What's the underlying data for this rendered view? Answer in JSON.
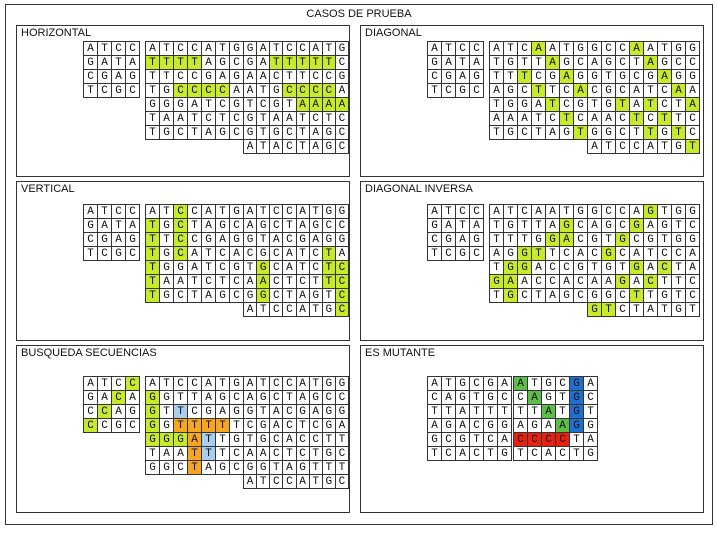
{
  "title": "CASOS DE PRUEBA",
  "panels": [
    {
      "id": "horizontal",
      "title": "HORIZONTAL",
      "grids": [
        {
          "rows": [
            "ATCC",
            "GATA",
            "CGAG",
            "TCGC"
          ],
          "hl": {}
        },
        {
          "rows": [
            "ATCCATG",
            "TTTTAGC",
            "TTCCGAG",
            "TGCCCCA",
            "GGGATCG",
            "TAATCTC",
            "TGCTAGC"
          ],
          "hl": {
            "h": [
              [
                1,
                0
              ],
              [
                1,
                1
              ],
              [
                1,
                2
              ],
              [
                1,
                3
              ],
              [
                3,
                2
              ],
              [
                3,
                3
              ],
              [
                3,
                4
              ],
              [
                3,
                5
              ]
            ]
          }
        },
        {
          "rows": [
            "GATCCATG",
            "GATTTTTC",
            "AACTTCCG",
            "ATGCCCCA",
            "TCGTAAAA",
            "GTAATCTC",
            "GTGCTAGC",
            "ATACTAGC"
          ],
          "hl": {
            "h": [
              [
                1,
                2
              ],
              [
                1,
                3
              ],
              [
                1,
                4
              ],
              [
                1,
                5
              ],
              [
                1,
                6
              ],
              [
                3,
                3
              ],
              [
                3,
                4
              ],
              [
                3,
                5
              ],
              [
                3,
                6
              ],
              [
                4,
                4
              ],
              [
                4,
                5
              ],
              [
                4,
                6
              ],
              [
                4,
                7
              ]
            ]
          }
        }
      ]
    },
    {
      "id": "diagonal",
      "title": "DIAGONAL",
      "grids": [
        {
          "rows": [
            "ATCC",
            "GATA",
            "CGAG",
            "TCGC"
          ],
          "hl": {}
        },
        {
          "rows": [
            "ATCAATG",
            "TGTTAGC",
            "TTTCGAG",
            "AGCTTCA",
            "TGGATCG",
            "AAATCTC",
            "TGCTAGT"
          ],
          "hl": {
            "h": [
              [
                0,
                3
              ],
              [
                1,
                4
              ],
              [
                2,
                2
              ],
              [
                2,
                5
              ],
              [
                3,
                3
              ],
              [
                3,
                6
              ],
              [
                4,
                4
              ],
              [
                5,
                5
              ],
              [
                6,
                6
              ]
            ]
          }
        },
        {
          "rows": [
            "GCCAATGG",
            "AGCTAGCC",
            "GTGCGAGG",
            "CGCATCAA",
            "TGTATCTA",
            "AACTCTTC",
            "GGCTTGTC",
            "ATCCATGT"
          ],
          "hl": {
            "h": [
              [
                0,
                3
              ],
              [
                1,
                4
              ],
              [
                2,
                5
              ],
              [
                3,
                6
              ],
              [
                4,
                2
              ],
              [
                4,
                4
              ],
              [
                4,
                7
              ],
              [
                5,
                3
              ],
              [
                5,
                5
              ],
              [
                6,
                4
              ],
              [
                6,
                6
              ],
              [
                7,
                7
              ]
            ]
          }
        }
      ]
    },
    {
      "id": "vertical",
      "title": "VERTICAL",
      "grids": [
        {
          "rows": [
            "ATCC",
            "GATA",
            "CGAG",
            "TCGC"
          ],
          "hl": {}
        },
        {
          "rows": [
            "ATCCATG",
            "TGCTAGC",
            "TTCCGAG",
            "TGCATCA",
            "TGGATCG",
            "TAATCTC",
            "TGCTAGC"
          ],
          "hl": {
            "h": [
              [
                0,
                2
              ],
              [
                1,
                0
              ],
              [
                1,
                2
              ],
              [
                2,
                0
              ],
              [
                2,
                2
              ],
              [
                3,
                0
              ],
              [
                3,
                2
              ],
              [
                4,
                0
              ],
              [
                5,
                0
              ],
              [
                6,
                0
              ]
            ]
          }
        },
        {
          "rows": [
            "ATCCATGG",
            "AGCTAGCC",
            "GTACGAGG",
            "CGCATCTA",
            "TGCATCTC",
            "AACTCTTC",
            "GGCTAGTC",
            "ATCCATGC"
          ],
          "hl": {
            "h": [
              [
                3,
                6
              ],
              [
                4,
                1
              ],
              [
                4,
                6
              ],
              [
                4,
                7
              ],
              [
                5,
                1
              ],
              [
                5,
                6
              ],
              [
                5,
                7
              ],
              [
                6,
                1
              ],
              [
                6,
                7
              ],
              [
                7,
                7
              ]
            ]
          }
        }
      ]
    },
    {
      "id": "diagonal-inversa",
      "title": "DIAGONAL INVERSA",
      "grids": [
        {
          "rows": [
            "ATCC",
            "GATA",
            "CGAG",
            "TCGC"
          ],
          "hl": {}
        },
        {
          "rows": [
            "ATCAATG",
            "TGTTAGC",
            "TTTGGAC",
            "AGGTTCA",
            "TGGACCG",
            "GAACCAC",
            "TGCTAGC"
          ],
          "hl": {
            "h": [
              [
                1,
                5
              ],
              [
                2,
                4
              ],
              [
                2,
                5
              ],
              [
                3,
                2
              ],
              [
                3,
                3
              ],
              [
                4,
                1
              ],
              [
                4,
                2
              ],
              [
                5,
                0
              ],
              [
                5,
                1
              ],
              [
                6,
                1
              ]
            ]
          }
        },
        {
          "rows": [
            "GCCAGTGG",
            "AGCGAGTC",
            "GTGCGTGG",
            "CGCATCCA",
            "TGTGACTA",
            "AAGACTTC",
            "GGCTTGTC",
            "GTCTATGT"
          ],
          "hl": {
            "h": [
              [
                0,
                4
              ],
              [
                1,
                3
              ],
              [
                2,
                2
              ],
              [
                3,
                1
              ],
              [
                4,
                3
              ],
              [
                4,
                5
              ],
              [
                5,
                2
              ],
              [
                5,
                4
              ],
              [
                6,
                3
              ],
              [
                7,
                0
              ],
              [
                7,
                1
              ]
            ]
          }
        }
      ]
    },
    {
      "id": "busqueda-secuencias",
      "title": "BUSQUEDA SECUENCIAS",
      "grids": [
        {
          "rows": [
            "ATCC",
            "GACA",
            "CCAG",
            "CCGC"
          ],
          "hl": {
            "h": [
              [
                0,
                3
              ],
              [
                1,
                2
              ],
              [
                2,
                1
              ],
              [
                3,
                0
              ]
            ]
          }
        },
        {
          "rows": [
            "ATCCATG",
            "GGTTAGC",
            "GTTCGAG",
            "GGTTTTT",
            "GGGATTG",
            "TAATTTC",
            "GGCTAGC"
          ],
          "hl": {
            "h": [
              [
                1,
                0
              ],
              [
                2,
                0
              ],
              [
                3,
                0
              ],
              [
                4,
                0
              ],
              [
                4,
                1
              ],
              [
                4,
                2
              ]
            ],
            "b": [
              [
                2,
                2
              ],
              [
                4,
                4
              ],
              [
                5,
                4
              ]
            ],
            "o": [
              [
                3,
                2
              ],
              [
                3,
                3
              ],
              [
                3,
                4
              ],
              [
                3,
                5
              ],
              [
                4,
                3
              ],
              [
                5,
                3
              ],
              [
                6,
                3
              ]
            ]
          }
        },
        {
          "rows": [
            "ATCCATGG",
            "AGCTAGCC",
            "GTACGAGG",
            "CGACTCGA",
            "TGCACCTT",
            "AACTCTGC",
            "GGTAGTTT",
            "ATCCATGC"
          ],
          "hl": {}
        }
      ]
    },
    {
      "id": "es-mutante",
      "title": "ES MUTANTE",
      "grids": [
        {
          "rows": [
            "ATGCGA",
            "CAGTGC",
            "TTATTT",
            "AGACGG",
            "GCGTCA",
            "TCACTG"
          ],
          "hl": {}
        },
        {
          "rows": [
            "ATGCGA",
            "CAGTGC",
            "TTATGT",
            "AGAAGG",
            "CCCCTA",
            "TCACTG"
          ],
          "hl": {
            "g": [
              [
                0,
                0
              ],
              [
                1,
                1
              ],
              [
                2,
                2
              ],
              [
                3,
                3
              ]
            ],
            "u": [
              [
                0,
                4
              ],
              [
                1,
                4
              ],
              [
                2,
                4
              ],
              [
                3,
                4
              ]
            ],
            "r": [
              [
                4,
                0
              ],
              [
                4,
                1
              ],
              [
                4,
                2
              ],
              [
                4,
                3
              ]
            ]
          }
        }
      ]
    }
  ]
}
